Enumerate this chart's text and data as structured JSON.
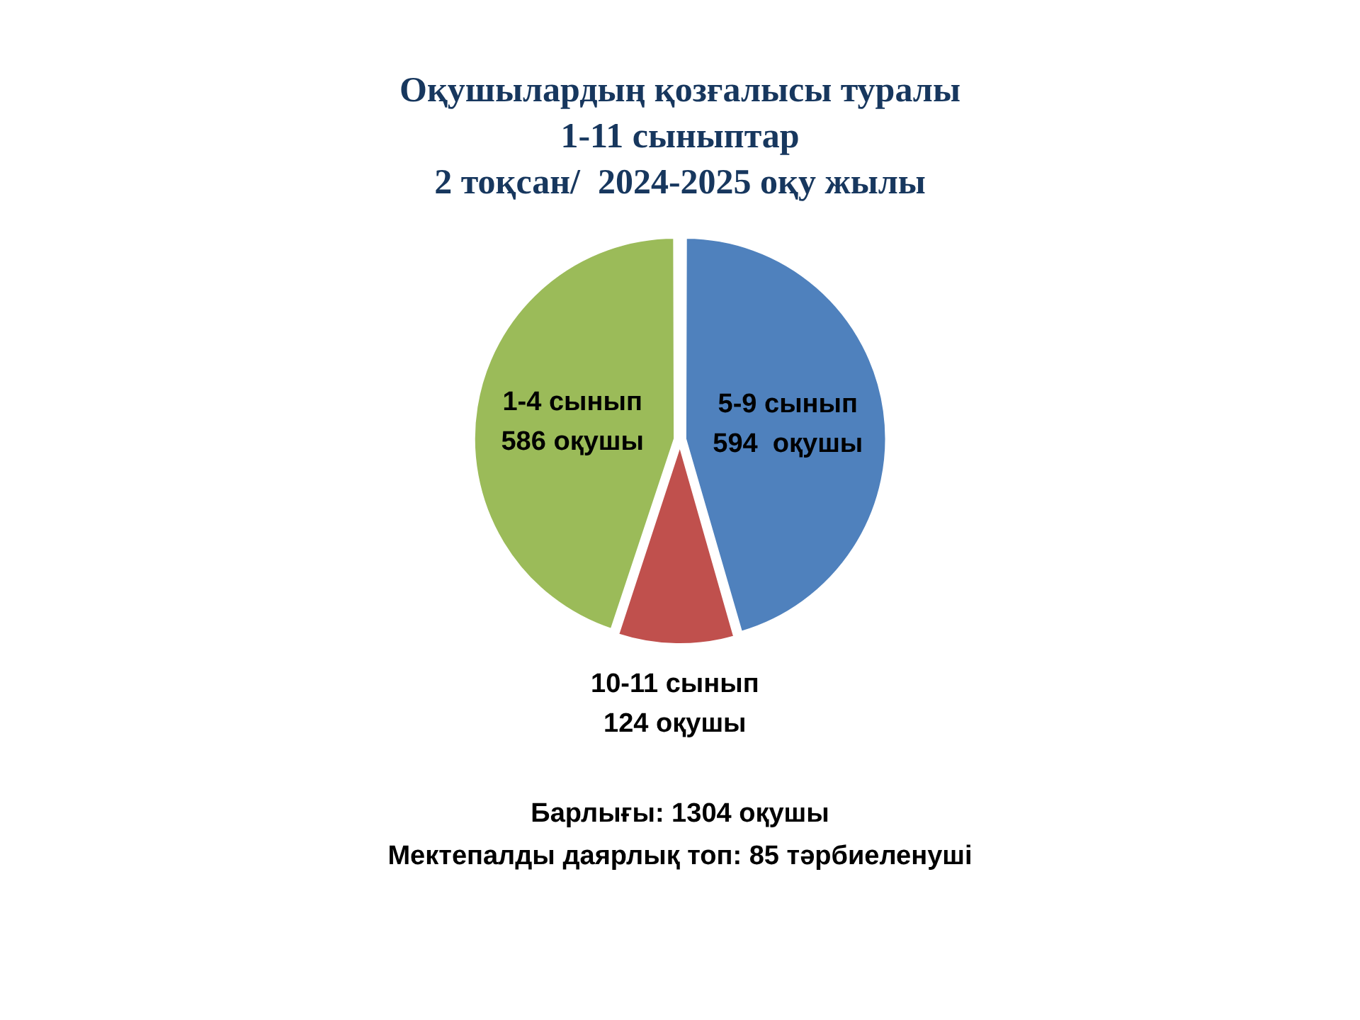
{
  "chart_data": {
    "type": "pie",
    "title": "Оқушылардың қозғалысы туралы\n1-11 сыныптар\n2 тоқсан/  2024-2025 оқу жылы",
    "categories": [
      "5-9 сынып",
      "10-11 сынып",
      "1-4 сынып"
    ],
    "values": [
      594,
      124,
      586
    ],
    "colors": [
      "#4f81bd",
      "#c0504d",
      "#9bbb59"
    ],
    "value_labels": [
      "594  оқушы",
      "124 оқушы",
      "586 оқушы"
    ],
    "annotations": [
      "Барлығы: 1304 оқушы",
      "Мектепалды даярлық топ: 85 тәрбиеленуші"
    ]
  }
}
